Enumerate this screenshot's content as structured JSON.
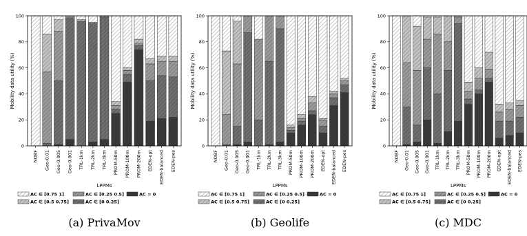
{
  "chart_data": [
    {
      "type": "bar",
      "stacked": true,
      "caption": "(a) PrivaMov",
      "xlabel": "LPPMs",
      "ylabel": "Mobility data utility (%)",
      "ylim": [
        0,
        100
      ],
      "yticks": [
        0,
        20,
        40,
        60,
        80,
        100
      ],
      "categories": [
        "NOBF",
        "Geo-0.01",
        "Geo-0.005",
        "Geo-0.001",
        "TRL-1km",
        "TRL-2km",
        "TRL-3km",
        "PROM-50m",
        "PROM-100m",
        "PROM-200m",
        "EDEN-opt",
        "EDEN-balanced",
        "EDEN-pes"
      ],
      "series": [
        {
          "name": "AC = 0",
          "values": [
            0,
            0,
            1,
            5,
            0,
            3,
            5,
            25,
            49,
            74,
            19,
            21,
            22
          ]
        },
        {
          "name": "AC ∈ [0 0.25]",
          "values": [
            0,
            2,
            49,
            93,
            96,
            91,
            94,
            3,
            6,
            3,
            31,
            33,
            31
          ]
        },
        {
          "name": "AC ∈ [0.25 0.5]",
          "values": [
            0,
            55,
            38,
            1,
            0,
            0,
            1,
            3,
            3,
            2,
            13,
            11,
            12
          ]
        },
        {
          "name": "AC ∈ [0.5 0.75]",
          "values": [
            0,
            29,
            9,
            1,
            1,
            1,
            0,
            3,
            2,
            3,
            4,
            4,
            4
          ]
        },
        {
          "name": "AC ∈ [0.75 1]",
          "values": [
            100,
            14,
            3,
            0,
            3,
            5,
            0,
            66,
            40,
            18,
            33,
            31,
            31
          ]
        }
      ]
    },
    {
      "type": "bar",
      "stacked": true,
      "caption": "(b) Geolife",
      "xlabel": "LPPMs",
      "ylabel": "Mobility data utility (%)",
      "ylim": [
        0,
        100
      ],
      "yticks": [
        0,
        20,
        40,
        60,
        80,
        100
      ],
      "categories": [
        "NOBF",
        "Geo-0.01",
        "Geo-0.005",
        "Geo-0.001",
        "TRL-1km",
        "TRL-2km",
        "TRL-3km",
        "PROM-50m",
        "PROM-100m",
        "PROM-200m",
        "EDEN-opt",
        "EDEN-balanced",
        "EDEN-pes"
      ],
      "series": [
        {
          "name": "AC = 0",
          "values": [
            0,
            0,
            1,
            3,
            0,
            1,
            3,
            10,
            16,
            24,
            10,
            31,
            41
          ]
        },
        {
          "name": "AC ∈ [0 0.25]",
          "values": [
            0,
            1,
            14,
            84,
            20,
            64,
            87,
            2,
            3,
            3,
            5,
            6,
            6
          ]
        },
        {
          "name": "AC ∈ [0.25 0.5]",
          "values": [
            0,
            23,
            48,
            13,
            62,
            35,
            10,
            2,
            2,
            6,
            5,
            3,
            3
          ]
        },
        {
          "name": "AC ∈ [0.5 0.75]",
          "values": [
            0,
            49,
            33,
            0,
            0,
            0,
            0,
            2,
            3,
            5,
            1,
            2,
            2
          ]
        },
        {
          "name": "AC ∈ [0.75 1]",
          "values": [
            100,
            27,
            4,
            0,
            18,
            0,
            0,
            84,
            76,
            62,
            79,
            58,
            48
          ]
        }
      ]
    },
    {
      "type": "bar",
      "stacked": true,
      "caption": "(c) MDC",
      "xlabel": "LPPMs",
      "ylabel": "Mobility data utility (%)",
      "ylim": [
        0,
        100
      ],
      "yticks": [
        0,
        20,
        40,
        60,
        80,
        100
      ],
      "categories": [
        "NOBF",
        "Geo-0.01",
        "Geo-0.005",
        "Geo-0.001",
        "TRL-1km",
        "TRL-2km",
        "TRL-3km",
        "PROM-50m",
        "PROM-100m",
        "PROM-200m",
        "EDEN-opt",
        "EDEN-balanced",
        "EDEN-pes"
      ],
      "series": [
        {
          "name": "AC = 0",
          "values": [
            0,
            1,
            3,
            20,
            2,
            11,
            19,
            32,
            40,
            49,
            6,
            8,
            10
          ]
        },
        {
          "name": "AC ∈ [0 0.25]",
          "values": [
            0,
            29,
            13,
            40,
            38,
            47,
            75,
            4,
            3,
            3,
            13,
            11,
            12
          ]
        },
        {
          "name": "AC ∈ [0.25 0.5]",
          "values": [
            0,
            34,
            42,
            22,
            46,
            22,
            5,
            6,
            9,
            7,
            7,
            9,
            9
          ]
        },
        {
          "name": "AC ∈ [0.5 0.75]",
          "values": [
            0,
            36,
            34,
            17,
            13,
            20,
            1,
            7,
            8,
            13,
            6,
            5,
            4
          ]
        },
        {
          "name": "AC ∈ [0.75 1]",
          "values": [
            100,
            0,
            8,
            1,
            1,
            0,
            0,
            51,
            40,
            28,
            68,
            67,
            65
          ]
        }
      ]
    }
  ],
  "legend": {
    "row1": [
      "AC ∈ [0.75 1]",
      "AC ∈ [0.25 0.5]",
      "AC = 0"
    ],
    "row2": [
      "AC ∈ [0.5 0.75]",
      "AC ∈ [0 0.25]"
    ]
  },
  "colors": {
    "AC = 0": "#3a3a3a",
    "AC ∈ [0 0.25]": "#6e6e6e",
    "AC ∈ [0.25 0.5]": "#9a9a9a",
    "AC ∈ [0.5 0.75]": "#c2c2c2",
    "AC ∈ [0.75 1]": "#ffffff"
  }
}
